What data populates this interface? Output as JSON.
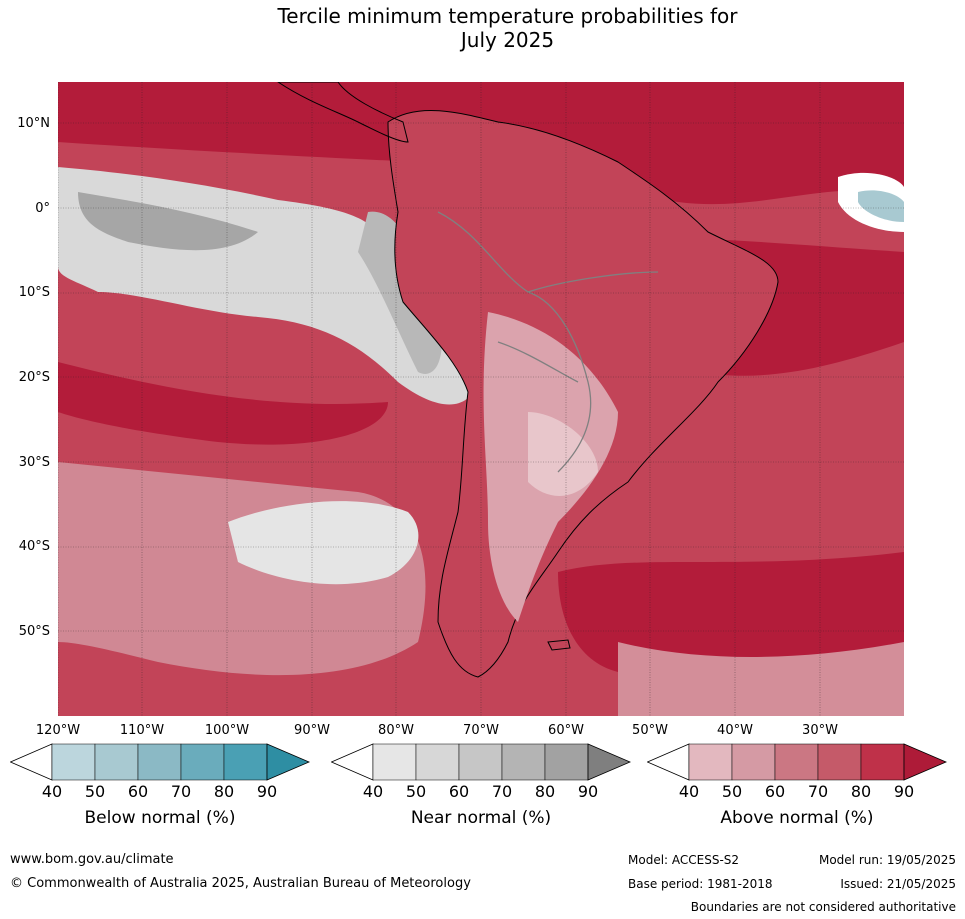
{
  "title": {
    "line1": "Tercile minimum temperature probabilities for",
    "line2": "July 2025"
  },
  "map": {
    "lat_labels": [
      "10°N",
      "0°",
      "10°S",
      "20°S",
      "30°S",
      "40°S",
      "50°S"
    ],
    "lon_labels": [
      "120°W",
      "110°W",
      "100°W",
      "90°W",
      "80°W",
      "70°W",
      "60°W",
      "50°W",
      "40°W",
      "30°W"
    ]
  },
  "legend": {
    "below": {
      "title": "Below normal (%)",
      "ticks": [
        "40",
        "50",
        "60",
        "70",
        "80",
        "90"
      ],
      "colors": [
        "#ffffff",
        "#bcd6dd",
        "#a8c9d1",
        "#8bb9c5",
        "#6aacbc",
        "#4aa0b4",
        "#2e8ea3"
      ]
    },
    "near": {
      "title": "Near normal (%)",
      "ticks": [
        "40",
        "50",
        "60",
        "70",
        "80",
        "90"
      ],
      "colors": [
        "#ffffff",
        "#e6e6e6",
        "#d7d7d7",
        "#c6c6c6",
        "#b4b4b4",
        "#a2a2a2",
        "#7f7f7f"
      ]
    },
    "above": {
      "title": "Above normal (%)",
      "ticks": [
        "40",
        "50",
        "60",
        "70",
        "80",
        "90"
      ],
      "colors": [
        "#ffffff",
        "#e3b8bf",
        "#d59aa4",
        "#cb7783",
        "#c55a69",
        "#bf3149",
        "#ae1b38"
      ]
    }
  },
  "footer": {
    "website": "www.bom.gov.au/climate",
    "copyright": "© Commonwealth of Australia 2025, Australian Bureau of Meteorology",
    "model": "Model: ACCESS-S2",
    "model_run": "Model run: 19/05/2025",
    "base_period": "Base period: 1981-2018",
    "issued": "Issued: 21/05/2025",
    "disclaimer": "Boundaries are not considered authoritative"
  }
}
